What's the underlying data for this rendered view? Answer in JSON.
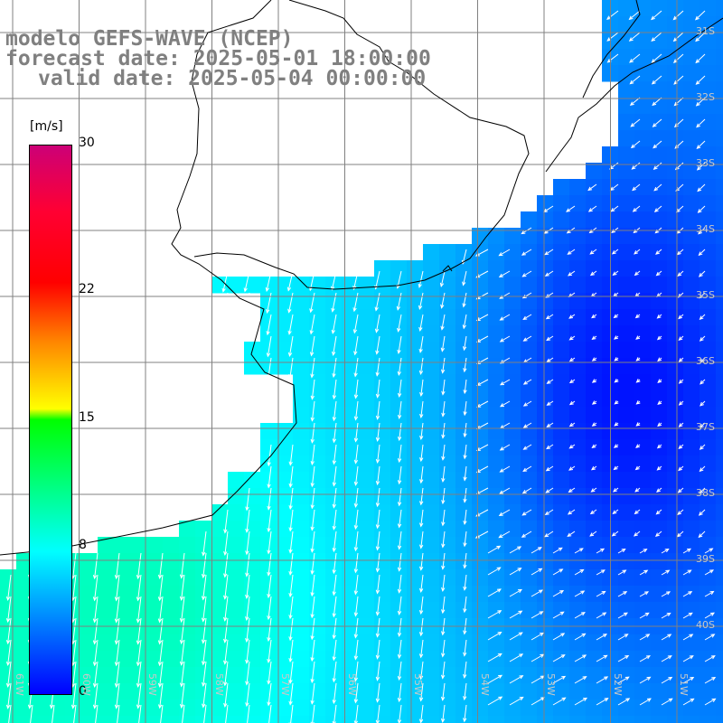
{
  "header": {
    "title": "modelo GEFS-WAVE (NCEP)",
    "forecast": "forecast date: 2025-05-01 18:00:00",
    "valid": "valid date: 2025-05-04 00:00:00"
  },
  "colorbar": {
    "units": "[m/s]",
    "labels": [
      {
        "text": "30",
        "value": 30
      },
      {
        "text": "22",
        "value": 22
      },
      {
        "text": "15",
        "value": 15
      },
      {
        "text": "8",
        "value": 8
      },
      {
        "text": "0",
        "value": 0
      }
    ],
    "min": 0,
    "max": 30
  },
  "map": {
    "lat_labels": [
      {
        "text": "31S",
        "value": -31
      },
      {
        "text": "32S",
        "value": -32
      },
      {
        "text": "33S",
        "value": -33
      },
      {
        "text": "34S",
        "value": -34
      },
      {
        "text": "35S",
        "value": -35
      },
      {
        "text": "36S",
        "value": -36
      },
      {
        "text": "37S",
        "value": -37
      },
      {
        "text": "38S",
        "value": -38
      },
      {
        "text": "39S",
        "value": -39
      },
      {
        "text": "40S",
        "value": -40
      }
    ],
    "lon_labels": [
      {
        "text": "61W",
        "value": -61
      },
      {
        "text": "60W",
        "value": -60
      },
      {
        "text": "59W",
        "value": -59
      },
      {
        "text": "58W",
        "value": -58
      },
      {
        "text": "57W",
        "value": -57
      },
      {
        "text": "56W",
        "value": -56
      },
      {
        "text": "55W",
        "value": -55
      },
      {
        "text": "54W",
        "value": -54
      },
      {
        "text": "53W",
        "value": -53
      },
      {
        "text": "52W",
        "value": -52
      },
      {
        "text": "51W",
        "value": -51
      }
    ],
    "grid": true,
    "colors": {
      "land": "#ffffff",
      "coastline": "#000000",
      "gridline": "#808080",
      "arrow": "#ffffff",
      "header_text": "#808080"
    }
  }
}
